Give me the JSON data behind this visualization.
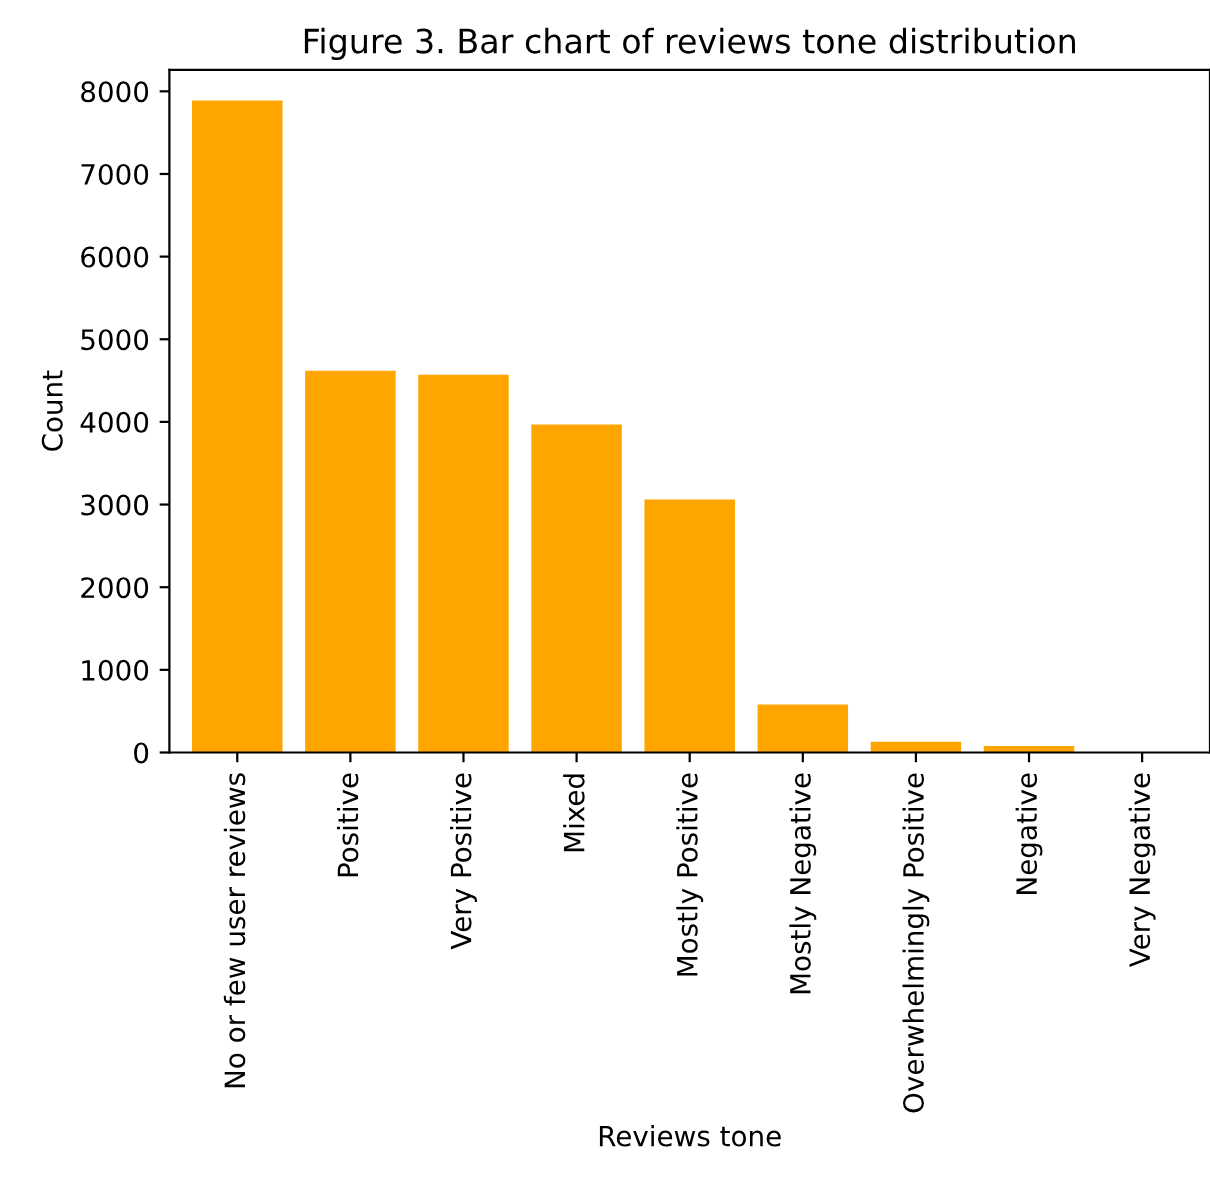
{
  "chart_data": {
    "type": "bar",
    "title": "Figure 3. Bar chart of reviews tone distribution",
    "xlabel": "Reviews tone",
    "ylabel": "Count",
    "categories": [
      "No or few user reviews",
      "Positive",
      "Very Positive",
      "Mixed",
      "Mostly Positive",
      "Mostly Negative",
      "Overwhelmingly Positive",
      "Negative",
      "Very Negative"
    ],
    "values": [
      7890,
      4620,
      4570,
      3970,
      3060,
      580,
      130,
      80,
      null
    ],
    "color": "#ffa500",
    "ylim": [
      0,
      8260
    ],
    "yticks": [
      0,
      1000,
      2000,
      3000,
      4000,
      5000,
      6000,
      7000,
      8000
    ],
    "grid": false
  }
}
